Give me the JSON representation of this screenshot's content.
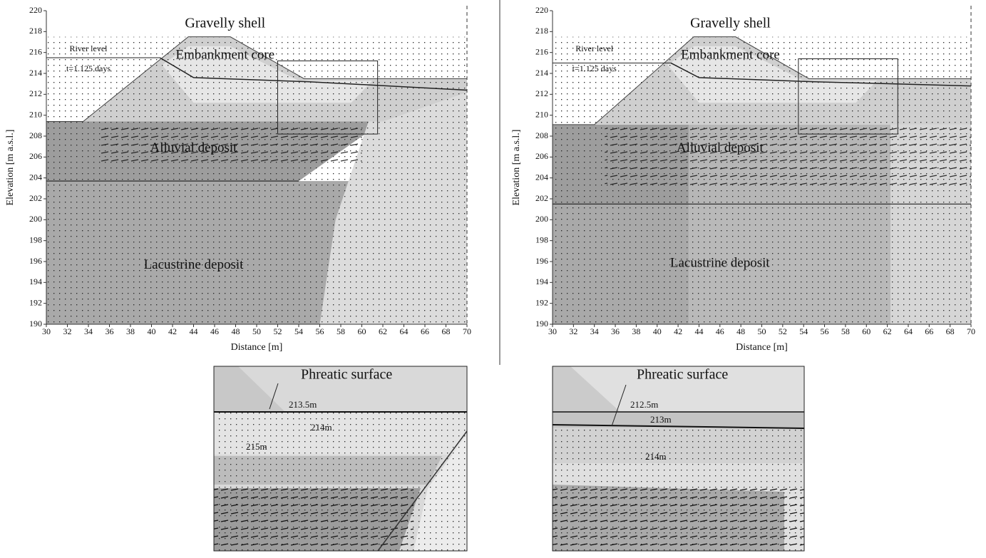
{
  "chart_data": [
    {
      "type": "section",
      "xlabel": "Distance [m]",
      "ylabel": "Elevation [m a.s.l.]",
      "xlim": [
        30,
        70
      ],
      "ylim": [
        190,
        220
      ],
      "xticks": [
        30,
        32,
        34,
        36,
        38,
        40,
        42,
        44,
        46,
        48,
        50,
        52,
        54,
        56,
        58,
        60,
        62,
        64,
        66,
        68,
        70
      ],
      "yticks": [
        190,
        192,
        194,
        196,
        198,
        200,
        202,
        204,
        206,
        208,
        210,
        212,
        214,
        216,
        218,
        220
      ],
      "annotations": [
        "Gravelly shell",
        "Embankment core",
        "River level",
        "t=1.125 days",
        "Alluvial deposit",
        "Lacustrine deposit"
      ]
    },
    {
      "type": "section",
      "xlabel": "Distance [m]",
      "ylabel": "Elevation [m a.s.l.]",
      "xlim": [
        30,
        70
      ],
      "ylim": [
        190,
        220
      ],
      "xticks": [
        30,
        32,
        34,
        36,
        38,
        40,
        42,
        44,
        46,
        48,
        50,
        52,
        54,
        56,
        58,
        60,
        62,
        64,
        66,
        68,
        70
      ],
      "yticks": [
        190,
        192,
        194,
        196,
        198,
        200,
        202,
        204,
        206,
        208,
        210,
        212,
        214,
        216,
        218,
        220
      ],
      "annotations": [
        "Gravelly shell",
        "Embankment core",
        "River level",
        "t=1.125 days",
        "Alluvial deposit",
        "Lacustrine deposit"
      ]
    }
  ],
  "insets": [
    {
      "title": "Phreatic surface",
      "contour_labels": [
        "213.5m",
        "214m",
        "215m"
      ]
    },
    {
      "title": "Phreatic surface",
      "contour_labels": [
        "212.5m",
        "213m",
        "214m"
      ]
    }
  ]
}
